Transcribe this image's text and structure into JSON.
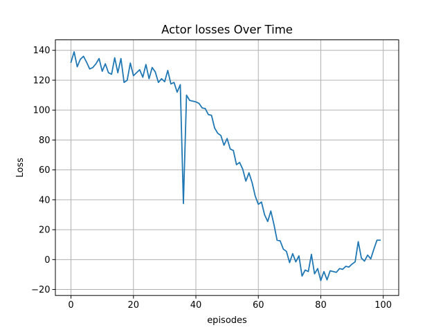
{
  "chart_data": {
    "type": "line",
    "title": "Actor losses Over Time",
    "xlabel": "episodes",
    "ylabel": "Loss",
    "xlim": [
      -5,
      104.95
    ],
    "ylim": [
      -24,
      147
    ],
    "xticks": [
      0,
      20,
      40,
      60,
      80,
      100
    ],
    "yticks": [
      -20,
      0,
      20,
      40,
      60,
      80,
      100,
      120,
      140
    ],
    "grid": true,
    "color": "#1f77b4",
    "series": [
      {
        "x": [
          0,
          1,
          2,
          3,
          4,
          5,
          6,
          7,
          8,
          9,
          10,
          11,
          12,
          13,
          14,
          15,
          16,
          17,
          18,
          19,
          20,
          21,
          22,
          23,
          24,
          25,
          26,
          27,
          28,
          29,
          30,
          31,
          32,
          33,
          34,
          35,
          36,
          37,
          38,
          39,
          40,
          41,
          42,
          43,
          44,
          45,
          46,
          47,
          48,
          49,
          50,
          51,
          52,
          53,
          54,
          55,
          56,
          57,
          58,
          59,
          60,
          61,
          62,
          63,
          64,
          65,
          66,
          67,
          68,
          69,
          70,
          71,
          72,
          73,
          74,
          75,
          76,
          77,
          78,
          79,
          80,
          81,
          82,
          83,
          84,
          85,
          86,
          87,
          88,
          89,
          90,
          91,
          92,
          93,
          94,
          95,
          96,
          97,
          98,
          99
        ],
        "values": [
          132,
          139,
          129,
          134,
          136,
          132,
          127.5,
          128.5,
          131,
          134.5,
          126,
          131,
          125,
          124,
          135,
          125,
          134.5,
          118.5,
          120,
          131.5,
          123,
          125,
          127,
          122,
          130.5,
          121,
          128.5,
          125.5,
          118.5,
          121,
          119,
          126.5,
          117.5,
          118.5,
          112,
          117,
          37.5,
          110,
          106.5,
          106,
          105.5,
          104.5,
          101.5,
          101,
          97,
          96.5,
          88,
          84.5,
          83,
          76.5,
          81,
          74,
          73,
          63.5,
          65,
          60.5,
          52.5,
          58,
          51.5,
          42.5,
          37,
          38.5,
          30,
          25.5,
          32.5,
          23.5,
          13,
          12.5,
          7,
          5.5,
          -2,
          4,
          -1.5,
          2.5,
          -11,
          -7,
          -8,
          3.5,
          -9.5,
          -6,
          -14,
          -8,
          -13.5,
          -7.5,
          -8,
          -8.5,
          -6,
          -6.5,
          -4.5,
          -5,
          -3,
          -1.5,
          12,
          1,
          -1,
          3,
          0.5,
          7,
          13,
          13
        ]
      }
    ]
  }
}
